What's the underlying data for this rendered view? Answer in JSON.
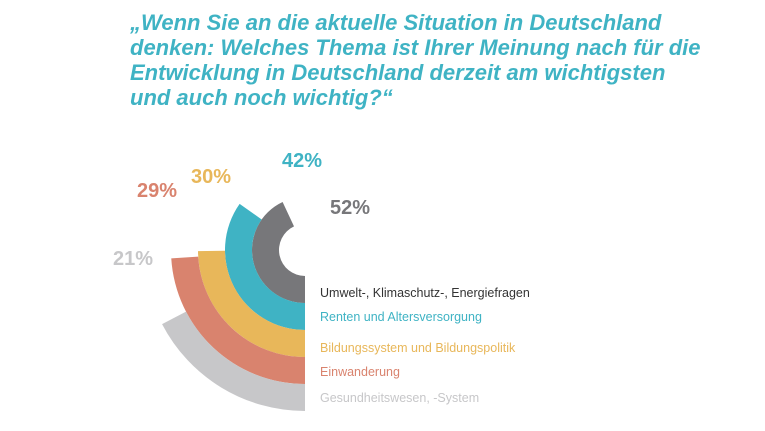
{
  "title_lines": [
    "„Wenn Sie an die aktuelle Situation in Deutschland",
    "denken: Welches Thema ist Ihrer Meinung nach für die",
    "Entwicklung in Deutschland derzeit am wichtigsten",
    "und auch noch wichtig?“"
  ],
  "chart_data": {
    "type": "radial-bar",
    "title": "„Wenn Sie an die aktuelle Situation in Deutschland denken: Welches Thema ist Ihrer Meinung nach für die Entwicklung in Deutschland derzeit am wichtigsten und auch noch wichtig?“",
    "unit": "%",
    "series": [
      {
        "name": "Umwelt-, Klimaschutz-, Energiefragen",
        "value": 52,
        "label": "52%",
        "color": "#77777a"
      },
      {
        "name": "Renten und Altersversorgung",
        "value": 42,
        "label": "42%",
        "color": "#3fb3c4"
      },
      {
        "name": "Bildungssystem und Bildungspolitik",
        "value": 30,
        "label": "30%",
        "color": "#e8b75a"
      },
      {
        "name": "Einwanderung",
        "value": 29,
        "label": "29%",
        "color": "#d9836e"
      },
      {
        "name": "Gesundheitswesen, -System",
        "value": 21,
        "label": "21%",
        "color": "#c7c7c9"
      }
    ],
    "legend_position": "right"
  }
}
